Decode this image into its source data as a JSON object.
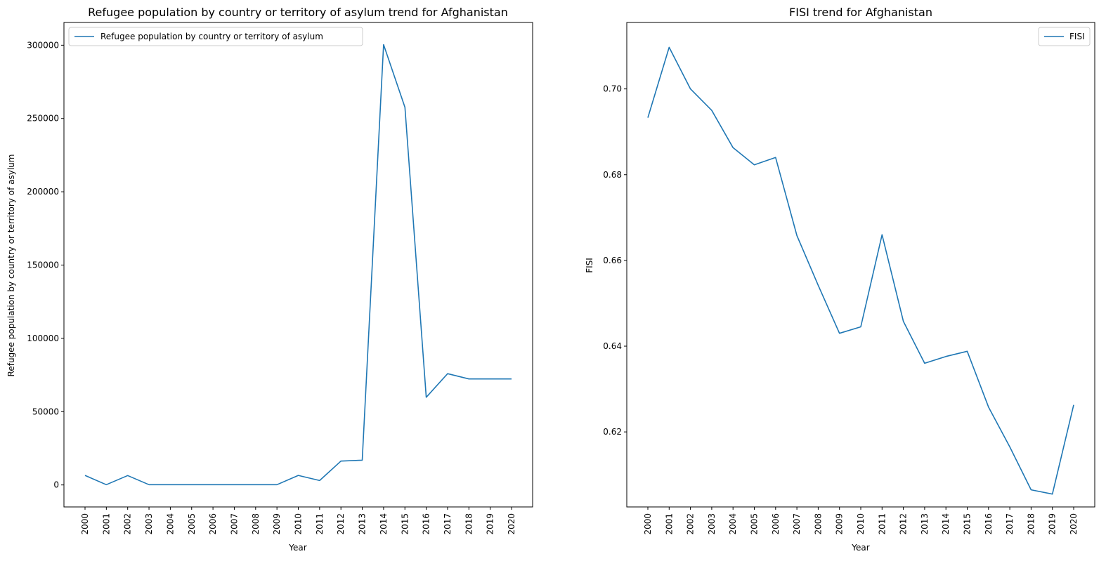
{
  "chart_data": [
    {
      "type": "line",
      "title": "Refugee population by country or territory of asylum trend for Afghanistan",
      "xlabel": "Year",
      "ylabel": "Refugee population by country or territory of asylum",
      "x": [
        "2000",
        "2001",
        "2002",
        "2003",
        "2004",
        "2005",
        "2006",
        "2007",
        "2008",
        "2009",
        "2010",
        "2011",
        "2012",
        "2013",
        "2014",
        "2015",
        "2016",
        "2017",
        "2018",
        "2019",
        "2020"
      ],
      "series": [
        {
          "name": "Refugee population by country or territory of asylum",
          "values": [
            6500,
            200,
            6400,
            200,
            200,
            200,
            200,
            200,
            200,
            200,
            6500,
            3000,
            16300,
            16900,
            300400,
            257600,
            59800,
            75900,
            72300,
            72300,
            72300
          ],
          "color": "#1f77b4"
        }
      ],
      "ylim": [
        -15000,
        315500
      ],
      "yticks": [
        0,
        50000,
        100000,
        150000,
        200000,
        250000,
        300000
      ],
      "ytick_labels": [
        "0",
        "50000",
        "100000",
        "150000",
        "200000",
        "250000",
        "300000"
      ],
      "legend": "top-left",
      "grid": false
    },
    {
      "type": "line",
      "title": "FISI trend for Afghanistan",
      "xlabel": "Year",
      "ylabel": "FISI",
      "x": [
        "2000",
        "2001",
        "2002",
        "2003",
        "2004",
        "2005",
        "2006",
        "2007",
        "2008",
        "2009",
        "2010",
        "2011",
        "2012",
        "2013",
        "2014",
        "2015",
        "2016",
        "2017",
        "2018",
        "2019",
        "2020"
      ],
      "series": [
        {
          "name": "FISI",
          "values": [
            0.6933,
            0.7097,
            0.7,
            0.695,
            0.6863,
            0.6823,
            0.684,
            0.6658,
            0.6542,
            0.643,
            0.6445,
            0.666,
            0.6458,
            0.636,
            0.6376,
            0.6388,
            0.6258,
            0.6165,
            0.6065,
            0.6055,
            0.6263
          ],
          "color": "#1f77b4"
        }
      ],
      "ylim": [
        0.6025,
        0.7155
      ],
      "yticks": [
        0.62,
        0.64,
        0.66,
        0.68,
        0.7
      ],
      "ytick_labels": [
        "0.62",
        "0.64",
        "0.66",
        "0.68",
        "0.70"
      ],
      "legend": "top-right",
      "grid": false
    }
  ]
}
